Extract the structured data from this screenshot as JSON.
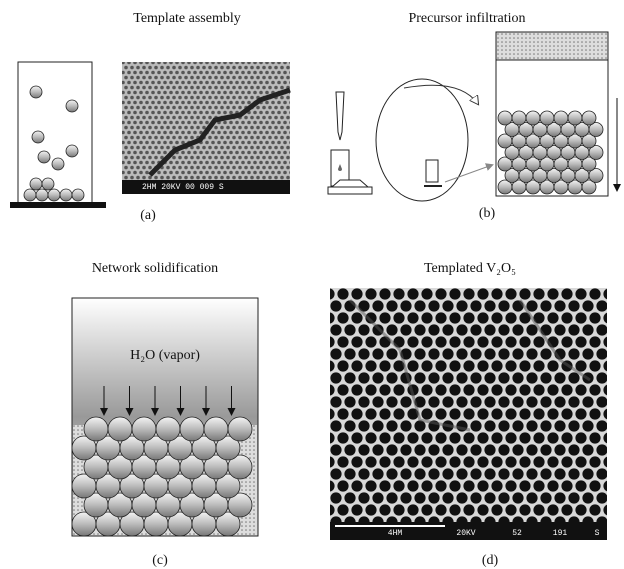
{
  "panels": {
    "a": {
      "title": "Template assembly",
      "label": "(a)",
      "scale_bar": "2HM  20KV  00  009  S"
    },
    "b": {
      "title": "Precursor infiltration",
      "label": "(b)"
    },
    "c": {
      "title": "Network solidification",
      "label": "(c)",
      "vapor": "H₂O (vapor)"
    },
    "d": {
      "title": "Templated V₂O₅",
      "label": "(d)",
      "scale_bar": [
        "4HM",
        "20KV",
        "52",
        "191",
        "S"
      ]
    }
  }
}
